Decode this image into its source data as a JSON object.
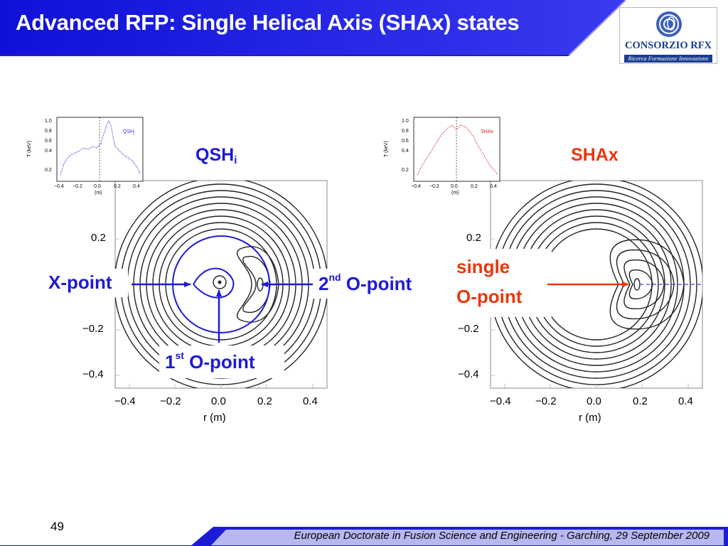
{
  "slide": {
    "title": "Advanced RFP: Single Helical Axis (SHAx) states",
    "page_number": "49",
    "footer": "European Doctorate in Fusion Science and Engineering  -  Garching, 29 September 2009"
  },
  "logo": {
    "name": "CONSORZIO RFX",
    "tagline": "Ricerca Formazione Innovazione"
  },
  "colors": {
    "header_blue": "#1414e6",
    "qsh_blue": "#1d1ad6",
    "shax_red": "#e8380d"
  },
  "figure": {
    "left_state": {
      "label_main": "QSH",
      "label_sub": "i"
    },
    "right_state": {
      "label": "SHAx"
    },
    "annotations": {
      "x_point": "X-point",
      "second_o_point": {
        "num": "2",
        "sup": "nd",
        "rest": " O-point"
      },
      "first_o_point": {
        "num": "1",
        "sup": "st",
        "rest": " O-point"
      },
      "single_o_point_line1": "single",
      "single_o_point_line2": "O-point"
    },
    "main_x_ticks": [
      "−0.4",
      "−0.2",
      "0.0",
      "0.2",
      "0.4"
    ],
    "main_y_ticks": [
      "0.2",
      "−0.2",
      "−0.4"
    ],
    "x_axis_label": "r (m)",
    "inset": {
      "y_ticks": [
        "1.0",
        "0.8",
        "0.6",
        "0.4",
        "0.2"
      ],
      "x_ticks": [
        "−0.4",
        "−0.2",
        "0.0",
        "0.2",
        "0.4"
      ],
      "y_label": "T  (keV)",
      "y_label_sub": "e",
      "x_label": "(m)",
      "left_legend": "QSH",
      "left_legend_sub": "i",
      "right_legend": "SHAx"
    }
  }
}
